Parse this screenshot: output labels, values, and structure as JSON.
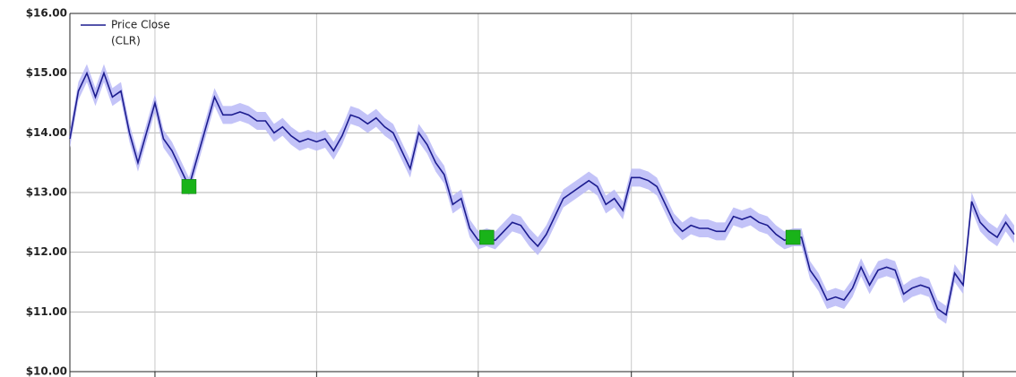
{
  "chart_data": {
    "type": "line",
    "series": [
      {
        "name": "Price Close",
        "ticker": "(CLR)",
        "color": "#1c1c8f",
        "values": [
          13.9,
          14.7,
          15.0,
          14.6,
          15.0,
          14.6,
          14.7,
          14.0,
          13.5,
          14.0,
          14.5,
          13.9,
          13.7,
          13.4,
          13.1,
          13.6,
          14.1,
          14.6,
          14.3,
          14.3,
          14.35,
          14.3,
          14.2,
          14.2,
          14.0,
          14.1,
          13.95,
          13.85,
          13.9,
          13.85,
          13.9,
          13.7,
          13.95,
          14.3,
          14.25,
          14.15,
          14.25,
          14.1,
          14.0,
          13.7,
          13.4,
          14.0,
          13.8,
          13.5,
          13.3,
          12.8,
          12.9,
          12.4,
          12.2,
          12.25,
          12.2,
          12.35,
          12.5,
          12.45,
          12.25,
          12.1,
          12.3,
          12.6,
          12.9,
          13.0,
          13.1,
          13.2,
          13.1,
          12.8,
          12.9,
          12.7,
          13.25,
          13.25,
          13.2,
          13.1,
          12.8,
          12.5,
          12.35,
          12.45,
          12.4,
          12.4,
          12.35,
          12.35,
          12.6,
          12.55,
          12.6,
          12.5,
          12.45,
          12.3,
          12.2,
          12.25,
          12.25,
          11.7,
          11.5,
          11.2,
          11.25,
          11.2,
          11.4,
          11.75,
          11.45,
          11.7,
          11.75,
          11.7,
          11.3,
          11.4,
          11.45,
          11.4,
          11.05,
          10.95,
          11.65,
          11.45,
          12.85,
          12.5,
          12.35,
          12.25,
          12.5,
          12.3
        ]
      }
    ],
    "band": {
      "color": "#b9b9f7",
      "high": [
        14.05,
        14.85,
        15.15,
        14.75,
        15.15,
        14.75,
        14.85,
        14.15,
        13.65,
        14.15,
        14.65,
        14.05,
        13.85,
        13.55,
        13.25,
        13.75,
        14.25,
        14.75,
        14.45,
        14.45,
        14.5,
        14.45,
        14.35,
        14.35,
        14.15,
        14.25,
        14.1,
        14.0,
        14.05,
        14.0,
        14.05,
        13.85,
        14.1,
        14.45,
        14.4,
        14.3,
        14.4,
        14.25,
        14.15,
        13.85,
        13.55,
        14.15,
        13.95,
        13.65,
        13.45,
        12.95,
        13.05,
        12.55,
        12.35,
        12.4,
        12.35,
        12.5,
        12.65,
        12.6,
        12.4,
        12.25,
        12.45,
        12.75,
        13.05,
        13.15,
        13.25,
        13.35,
        13.25,
        12.95,
        13.05,
        12.85,
        13.4,
        13.4,
        13.35,
        13.25,
        12.95,
        12.65,
        12.5,
        12.6,
        12.55,
        12.55,
        12.5,
        12.5,
        12.75,
        12.7,
        12.75,
        12.65,
        12.6,
        12.45,
        12.35,
        12.4,
        12.4,
        11.85,
        11.65,
        11.35,
        11.4,
        11.35,
        11.55,
        11.9,
        11.6,
        11.85,
        11.9,
        11.85,
        11.45,
        11.55,
        11.6,
        11.55,
        11.2,
        11.1,
        11.8,
        11.6,
        13.0,
        12.65,
        12.5,
        12.4,
        12.65,
        12.45
      ],
      "low": [
        13.75,
        14.55,
        14.85,
        14.45,
        14.85,
        14.45,
        14.55,
        13.85,
        13.35,
        13.85,
        14.35,
        13.75,
        13.55,
        13.25,
        12.95,
        13.45,
        13.95,
        14.45,
        14.15,
        14.15,
        14.2,
        14.15,
        14.05,
        14.05,
        13.85,
        13.95,
        13.8,
        13.7,
        13.75,
        13.7,
        13.75,
        13.55,
        13.8,
        14.15,
        14.1,
        14.0,
        14.1,
        13.95,
        13.85,
        13.55,
        13.25,
        13.85,
        13.65,
        13.35,
        13.15,
        12.65,
        12.75,
        12.25,
        12.05,
        12.1,
        12.05,
        12.2,
        12.35,
        12.3,
        12.1,
        11.95,
        12.15,
        12.45,
        12.75,
        12.85,
        12.95,
        13.05,
        12.95,
        12.65,
        12.75,
        12.55,
        13.1,
        13.1,
        13.05,
        12.95,
        12.65,
        12.35,
        12.2,
        12.3,
        12.25,
        12.25,
        12.2,
        12.2,
        12.45,
        12.4,
        12.45,
        12.35,
        12.3,
        12.15,
        12.05,
        12.1,
        12.1,
        11.55,
        11.35,
        11.05,
        11.1,
        11.05,
        11.25,
        11.6,
        11.3,
        11.55,
        11.6,
        11.55,
        11.15,
        11.25,
        11.3,
        11.25,
        10.9,
        10.8,
        11.5,
        11.3,
        12.7,
        12.35,
        12.2,
        12.1,
        12.35,
        12.15
      ]
    },
    "markers": {
      "color": "#19b319",
      "x": [
        14,
        49,
        85
      ],
      "values": [
        13.1,
        12.25,
        12.25
      ]
    },
    "xlim": [
      0,
      111
    ],
    "xticks": [
      10,
      29,
      48,
      66,
      85,
      105
    ],
    "ylim": [
      10,
      16
    ],
    "yticks": [
      {
        "value": 10,
        "label": "$10.00"
      },
      {
        "value": 11,
        "label": "$11.00"
      },
      {
        "value": 12,
        "label": "$12.00"
      },
      {
        "value": 13,
        "label": "$13.00"
      },
      {
        "value": 14,
        "label": "$14.00"
      },
      {
        "value": 15,
        "label": "$15.00"
      },
      {
        "value": 16,
        "label": "$16.00"
      }
    ],
    "grid": true
  }
}
